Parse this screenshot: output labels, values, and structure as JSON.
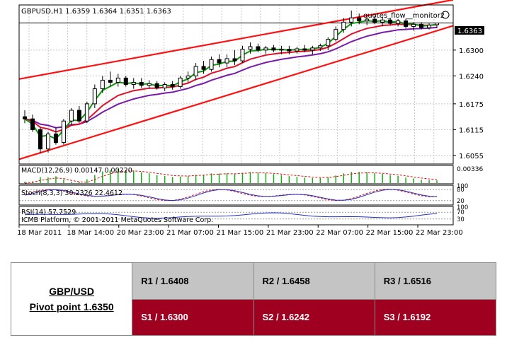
{
  "chart_data": {
    "type": "candlestick",
    "title": "GBPUSD,H1  1.6359 1.6364 1.6351 1.6363",
    "watermark": "quotes_flow__monitor2",
    "current_price_label": "1.6363",
    "current_price": 1.6363,
    "y_ticks": [
      "1.6300",
      "1.6240",
      "1.6175",
      "1.6115",
      "1.6055"
    ],
    "y_tick_values": [
      1.63,
      1.624,
      1.6175,
      1.6115,
      1.6055
    ],
    "ylim": [
      1.6035,
      1.6405
    ],
    "x_ticks": [
      "18 Mar 2011",
      "18 Mar 14:00",
      "20 Mar 23:00",
      "21 Mar 07:00",
      "21 Mar 15:00",
      "21 Mar 23:00",
      "22 Mar 07:00",
      "22 Mar 15:00",
      "22 Mar 23:00"
    ],
    "candles": [
      {
        "o": 1.6145,
        "h": 1.616,
        "l": 1.613,
        "c": 1.614
      },
      {
        "o": 1.614,
        "h": 1.615,
        "l": 1.611,
        "c": 1.6115
      },
      {
        "o": 1.6115,
        "h": 1.612,
        "l": 1.606,
        "c": 1.607
      },
      {
        "o": 1.607,
        "h": 1.611,
        "l": 1.6062,
        "c": 1.6105
      },
      {
        "o": 1.6105,
        "h": 1.612,
        "l": 1.608,
        "c": 1.6085
      },
      {
        "o": 1.6085,
        "h": 1.614,
        "l": 1.608,
        "c": 1.6135
      },
      {
        "o": 1.6135,
        "h": 1.6165,
        "l": 1.6125,
        "c": 1.616
      },
      {
        "o": 1.616,
        "h": 1.617,
        "l": 1.613,
        "c": 1.6135
      },
      {
        "o": 1.6135,
        "h": 1.618,
        "l": 1.613,
        "c": 1.6175
      },
      {
        "o": 1.6175,
        "h": 1.622,
        "l": 1.6165,
        "c": 1.621
      },
      {
        "o": 1.621,
        "h": 1.624,
        "l": 1.62,
        "c": 1.623
      },
      {
        "o": 1.623,
        "h": 1.625,
        "l": 1.6215,
        "c": 1.6225
      },
      {
        "o": 1.6225,
        "h": 1.6245,
        "l": 1.6215,
        "c": 1.6235
      },
      {
        "o": 1.6235,
        "h": 1.624,
        "l": 1.6215,
        "c": 1.622
      },
      {
        "o": 1.622,
        "h": 1.6235,
        "l": 1.621,
        "c": 1.6225
      },
      {
        "o": 1.6225,
        "h": 1.6235,
        "l": 1.6212,
        "c": 1.6218
      },
      {
        "o": 1.6218,
        "h": 1.623,
        "l": 1.621,
        "c": 1.6222
      },
      {
        "o": 1.6222,
        "h": 1.6228,
        "l": 1.6208,
        "c": 1.6212
      },
      {
        "o": 1.6212,
        "h": 1.6225,
        "l": 1.6205,
        "c": 1.622
      },
      {
        "o": 1.622,
        "h": 1.6228,
        "l": 1.6208,
        "c": 1.6215
      },
      {
        "o": 1.6215,
        "h": 1.624,
        "l": 1.621,
        "c": 1.6235
      },
      {
        "o": 1.6235,
        "h": 1.625,
        "l": 1.6225,
        "c": 1.624
      },
      {
        "o": 1.624,
        "h": 1.627,
        "l": 1.623,
        "c": 1.6262
      },
      {
        "o": 1.6262,
        "h": 1.6275,
        "l": 1.6245,
        "c": 1.6255
      },
      {
        "o": 1.6255,
        "h": 1.6285,
        "l": 1.625,
        "c": 1.6278
      },
      {
        "o": 1.6278,
        "h": 1.629,
        "l": 1.626,
        "c": 1.627
      },
      {
        "o": 1.627,
        "h": 1.629,
        "l": 1.626,
        "c": 1.628
      },
      {
        "o": 1.628,
        "h": 1.63,
        "l": 1.6265,
        "c": 1.6275
      },
      {
        "o": 1.6275,
        "h": 1.631,
        "l": 1.627,
        "c": 1.6302
      },
      {
        "o": 1.6302,
        "h": 1.6318,
        "l": 1.6292,
        "c": 1.6308
      },
      {
        "o": 1.6308,
        "h": 1.6315,
        "l": 1.6295,
        "c": 1.63
      },
      {
        "o": 1.63,
        "h": 1.631,
        "l": 1.6292,
        "c": 1.6305
      },
      {
        "o": 1.6305,
        "h": 1.6312,
        "l": 1.6295,
        "c": 1.63
      },
      {
        "o": 1.63,
        "h": 1.631,
        "l": 1.629,
        "c": 1.6302
      },
      {
        "o": 1.6302,
        "h": 1.631,
        "l": 1.629,
        "c": 1.6298
      },
      {
        "o": 1.6298,
        "h": 1.6308,
        "l": 1.6292,
        "c": 1.6303
      },
      {
        "o": 1.6303,
        "h": 1.6312,
        "l": 1.6295,
        "c": 1.63
      },
      {
        "o": 1.63,
        "h": 1.631,
        "l": 1.629,
        "c": 1.6305
      },
      {
        "o": 1.6305,
        "h": 1.6315,
        "l": 1.6298,
        "c": 1.631
      },
      {
        "o": 1.631,
        "h": 1.633,
        "l": 1.63,
        "c": 1.6325
      },
      {
        "o": 1.6325,
        "h": 1.6355,
        "l": 1.632,
        "c": 1.6348
      },
      {
        "o": 1.6348,
        "h": 1.6375,
        "l": 1.634,
        "c": 1.6365
      },
      {
        "o": 1.6365,
        "h": 1.6392,
        "l": 1.6355,
        "c": 1.6375
      },
      {
        "o": 1.6375,
        "h": 1.6385,
        "l": 1.636,
        "c": 1.6368
      },
      {
        "o": 1.6368,
        "h": 1.638,
        "l": 1.6358,
        "c": 1.6372
      },
      {
        "o": 1.6372,
        "h": 1.638,
        "l": 1.636,
        "c": 1.6365
      },
      {
        "o": 1.6365,
        "h": 1.6378,
        "l": 1.6355,
        "c": 1.637
      },
      {
        "o": 1.637,
        "h": 1.6375,
        "l": 1.6358,
        "c": 1.6362
      },
      {
        "o": 1.6362,
        "h": 1.6372,
        "l": 1.6355,
        "c": 1.6368
      },
      {
        "o": 1.6368,
        "h": 1.6372,
        "l": 1.635,
        "c": 1.6355
      },
      {
        "o": 1.6355,
        "h": 1.6365,
        "l": 1.6345,
        "c": 1.636
      },
      {
        "o": 1.636,
        "h": 1.6365,
        "l": 1.6348,
        "c": 1.6352
      },
      {
        "o": 1.6352,
        "h": 1.6362,
        "l": 1.6348,
        "c": 1.6358
      },
      {
        "o": 1.6359,
        "h": 1.6364,
        "l": 1.6351,
        "c": 1.6363
      }
    ],
    "channel_upper": [
      [
        0,
        1.6235
      ],
      [
        53,
        1.641
      ]
    ],
    "channel_lower": [
      [
        0,
        1.605
      ],
      [
        53,
        1.6345
      ]
    ],
    "macd_label": "MACD(12,26,9) 0.00147 0.00220",
    "macd_tick": "0.00336",
    "stoch_label": "Stoch(8,3,3) 30.2326 22.4612",
    "stoch_ticks": [
      "100",
      "80",
      "20"
    ],
    "rsi_label": "RSI(14) 57.7529",
    "rsi_ticks": [
      "100",
      "70",
      "30"
    ],
    "copyright": "ICMB Platform, © 2001-2011 MetaQuotes Software Corp."
  },
  "pivot_table": {
    "pair": "GBP/USD",
    "pivot": "Pivot point 1.6350",
    "resistance": [
      "R1 / 1.6408",
      "R2 / 1.6458",
      "R3 / 1.6516"
    ],
    "support": [
      "S1 / 1.6300",
      "S2 / 1.6242",
      "S3 / 1.6192"
    ]
  }
}
